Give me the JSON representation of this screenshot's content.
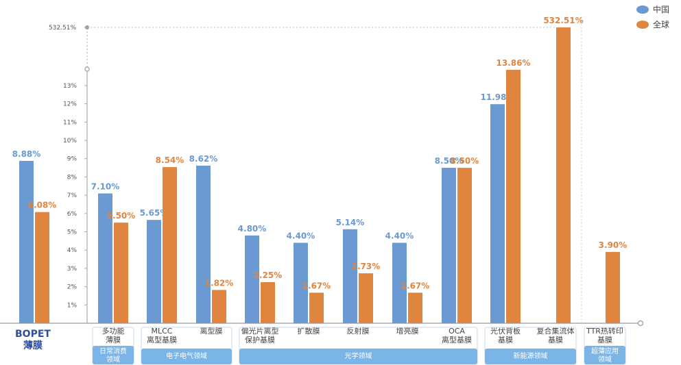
{
  "chart_data": {
    "type": "bar",
    "colors": {
      "china": "#6a9ad1",
      "global": "#e08540",
      "group_bg": "#7bb4e6",
      "axis": "#aaaaaa"
    },
    "legend_placement": "top-right",
    "y_ticks": [
      "1%",
      "2%",
      "3%",
      "4%",
      "5%",
      "6%",
      "7%",
      "8%",
      "9%",
      "10%",
      "11%",
      "12%",
      "13%",
      "532.51%"
    ],
    "y_axis_break": true,
    "series": [
      {
        "name": "中国",
        "values": [
          8.88,
          7.1,
          5.65,
          8.62,
          4.8,
          4.4,
          5.14,
          4.4,
          8.5,
          11.98,
          null,
          null
        ],
        "labels": [
          "8.88%",
          "7.10%",
          "5.65%",
          "8.62%",
          "4.80%",
          "4.40%",
          "5.14%",
          "4.40%",
          "8.50%",
          "11.98%",
          "",
          ""
        ]
      },
      {
        "name": "全球",
        "values": [
          6.08,
          5.5,
          8.54,
          1.82,
          2.25,
          1.67,
          2.73,
          1.67,
          8.5,
          13.86,
          532.51,
          3.9
        ],
        "labels": [
          "6.08%",
          "5.50%",
          "8.54%",
          "1.82%",
          "2.25%",
          "1.67%",
          "2.73%",
          "1.67%",
          "8.50%",
          "13.86%",
          "532.51%",
          "3.90%"
        ]
      }
    ],
    "categories": [
      {
        "lines": [
          "BOPET",
          "薄膜"
        ]
      },
      {
        "lines": [
          "多功能",
          "薄膜"
        ]
      },
      {
        "lines": [
          "MLCC",
          "离型基膜"
        ]
      },
      {
        "lines": [
          "离型膜"
        ]
      },
      {
        "lines": [
          "偏光片离型",
          "保护基膜"
        ]
      },
      {
        "lines": [
          "扩散膜"
        ]
      },
      {
        "lines": [
          "反射膜"
        ]
      },
      {
        "lines": [
          "增亮膜"
        ]
      },
      {
        "lines": [
          "OCA",
          "离型基膜"
        ]
      },
      {
        "lines": [
          "光伏背板",
          "基膜"
        ]
      },
      {
        "lines": [
          "复合集流体",
          "基膜"
        ]
      },
      {
        "lines": [
          "TTR热转印",
          "基膜"
        ]
      }
    ],
    "groups": [
      {
        "lines": [
          "日常消费",
          "领域"
        ],
        "from": 1,
        "to": 1
      },
      {
        "lines": [
          "电子电气领域"
        ],
        "from": 2,
        "to": 3
      },
      {
        "lines": [
          "光学领域"
        ],
        "from": 4,
        "to": 8
      },
      {
        "lines": [
          "新能源领域"
        ],
        "from": 9,
        "to": 10
      },
      {
        "lines": [
          "超薄应用",
          "领域"
        ],
        "from": 11,
        "to": 11
      }
    ]
  }
}
